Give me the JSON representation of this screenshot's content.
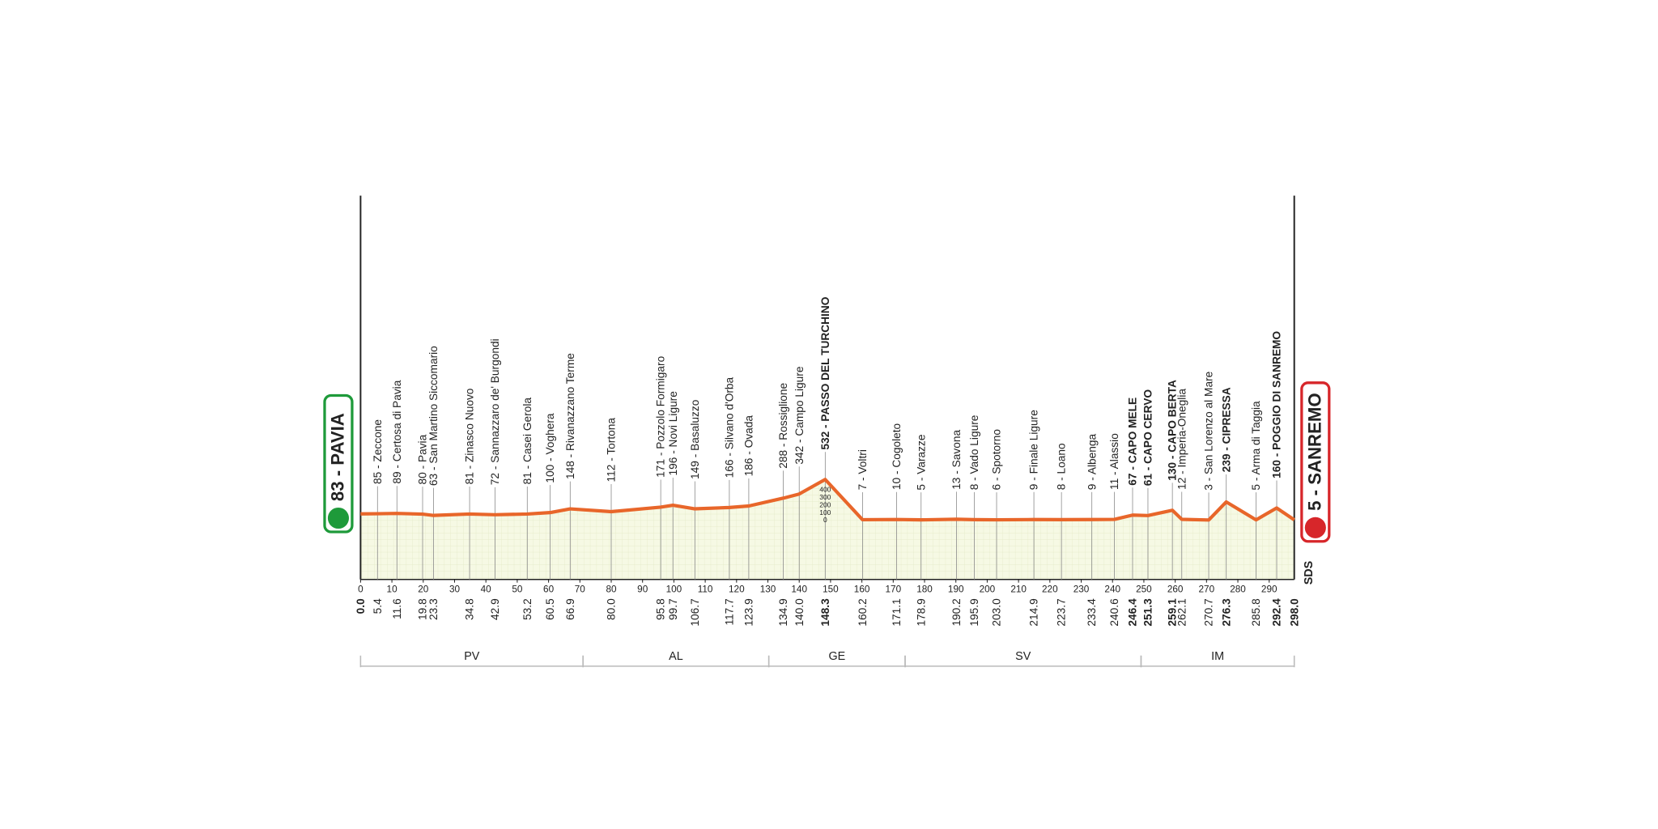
{
  "chart_data": {
    "type": "line",
    "x": [
      0,
      5.4,
      11.6,
      19.8,
      23.3,
      34.8,
      42.9,
      53.2,
      60.5,
      66.9,
      80.0,
      95.8,
      99.7,
      106.7,
      117.7,
      123.9,
      134.9,
      140.0,
      148.3,
      160.2,
      171.1,
      178.9,
      190.2,
      195.9,
      203.0,
      214.9,
      223.7,
      233.4,
      240.6,
      246.4,
      251.3,
      259.1,
      262.1,
      270.7,
      276.3,
      285.8,
      292.4,
      298.0
    ],
    "x_labels": [
      "0.0",
      "5.4",
      "11.6",
      "19.8",
      "23.3",
      "34.8",
      "42.9",
      "53.2",
      "60.5",
      "66.9",
      "80.0",
      "95.8",
      "99.7",
      "106.7",
      "117.7",
      "123.9",
      "134.9",
      "140.0",
      "148.3",
      "160.2",
      "171.1",
      "178.9",
      "190.2",
      "195.9",
      "203.0",
      "214.9",
      "223.7",
      "233.4",
      "240.6",
      "246.4",
      "251.3",
      "259.1",
      "262.1",
      "270.7",
      "276.3",
      "285.8",
      "292.4",
      "298.0"
    ],
    "values": [
      83,
      85,
      89,
      80,
      63,
      81,
      72,
      81,
      100,
      148,
      112,
      171,
      196,
      149,
      166,
      186,
      288,
      342,
      532,
      7,
      10,
      5,
      13,
      8,
      6,
      9,
      8,
      9,
      11,
      67,
      61,
      130,
      12,
      3,
      239,
      5,
      160,
      5
    ],
    "value_labels": [
      "83 - PAVIA",
      "85 - Zeccone",
      "89 - Certosa di Pavia",
      "80 - Pavia",
      "63 - San Martino Siccomario",
      "81 - Zinasco Nuovo",
      "72 - Sannazzaro de' Burgondi",
      "81 - Casei Gerola",
      "100 - Voghera",
      "148 - Rivanazzano Terme",
      "112 - Tortona",
      "171 - Pozzolo Formigaro",
      "196 - Novi Ligure",
      "149 - Basaluzzo",
      "166 - Silvano d'Orba",
      "186 - Ovada",
      "288 - Rossiglione",
      "342 - Campo Ligure",
      "532 - PASSO DEL TURCHINO",
      "7 - Voltri",
      "10 - Cogoleto",
      "5 - Varazze",
      "13 - Savona",
      "8 - Vado Ligure",
      "6 - Spotorno",
      "9 - Finale Ligure",
      "8 - Loano",
      "9 - Albenga",
      "11 - Alassio",
      "67 - CAPO MELE",
      "61 - CAPO CERVO",
      "130 - CAPO BERTA",
      "12 - Imperia-Oneglia",
      "3 - San Lorenzo al Mare",
      "239 - CIPRESSA",
      "5 - Arma di Taggia",
      "160 - POGGIO DI SANREMO",
      "5 - SANREMO"
    ],
    "bold": [
      true,
      false,
      false,
      false,
      false,
      false,
      false,
      false,
      false,
      false,
      false,
      false,
      false,
      false,
      false,
      false,
      false,
      false,
      true,
      false,
      false,
      false,
      false,
      false,
      false,
      false,
      false,
      false,
      false,
      true,
      true,
      true,
      false,
      false,
      true,
      false,
      true,
      true
    ],
    "color": "#e8662a",
    "start_color": "#1e9a3a",
    "finish_color": "#d7262a",
    "xlim": [
      0,
      298
    ],
    "xticks": [
      0,
      10,
      20,
      30,
      40,
      50,
      60,
      70,
      80,
      90,
      100,
      110,
      120,
      130,
      140,
      150,
      160,
      170,
      180,
      190,
      200,
      210,
      220,
      230,
      240,
      250,
      260,
      270,
      280,
      290
    ],
    "ylim": [
      0,
      400
    ],
    "yticks": [
      0,
      100,
      200,
      300,
      400
    ],
    "regions": [
      {
        "label": "PV",
        "from": 0,
        "to": 71
      },
      {
        "label": "AL",
        "from": 71,
        "to": 130.3
      },
      {
        "label": "GE",
        "from": 130.3,
        "to": 173.8
      },
      {
        "label": "SV",
        "from": 173.8,
        "to": 249.1
      },
      {
        "label": "IM",
        "from": 249.1,
        "to": 298
      }
    ],
    "logo": "SDS"
  }
}
